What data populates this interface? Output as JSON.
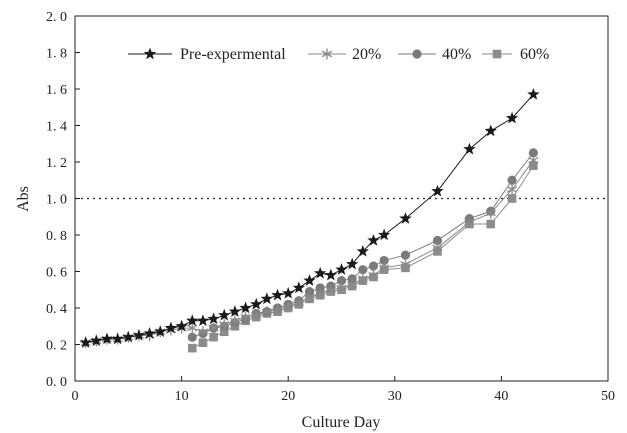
{
  "chart_data": {
    "type": "line",
    "title": "",
    "xlabel": "Culture Day",
    "ylabel": "Abs",
    "xlim": [
      0,
      50
    ],
    "ylim": [
      0,
      2.0
    ],
    "x_ticks": [
      "0",
      "10",
      "20",
      "30",
      "40",
      "50"
    ],
    "y_ticks": [
      "0. 0",
      "0. 2",
      "0. 4",
      "0. 6",
      "0. 8",
      "1. 0",
      "1. 2",
      "1. 4",
      "1. 6",
      "1. 8",
      "2. 0"
    ],
    "reference_line": {
      "y": 1.0,
      "style": "dotted"
    },
    "grid": false,
    "legend_position": "top",
    "series": [
      {
        "name": "Pre-expermental",
        "marker": "star",
        "color": "#1a1a1a",
        "x": [
          1,
          2,
          3,
          4,
          5,
          6,
          7,
          8,
          9,
          10,
          11,
          12,
          13,
          14,
          15,
          16,
          17,
          18,
          19,
          20,
          21,
          22,
          23,
          24,
          25,
          26,
          27,
          28,
          29,
          31,
          34,
          37,
          39,
          41,
          43
        ],
        "y": [
          0.21,
          0.22,
          0.23,
          0.23,
          0.24,
          0.25,
          0.26,
          0.27,
          0.29,
          0.3,
          0.33,
          0.33,
          0.34,
          0.36,
          0.38,
          0.4,
          0.42,
          0.45,
          0.47,
          0.48,
          0.51,
          0.55,
          0.59,
          0.58,
          0.61,
          0.64,
          0.71,
          0.77,
          0.8,
          0.89,
          1.04,
          1.27,
          1.37,
          1.44,
          1.57
        ]
      },
      {
        "name": "20%",
        "marker": "asterisk",
        "color": "#8a8a8a",
        "x": [
          1,
          2,
          3,
          4,
          5,
          6,
          7,
          8,
          9,
          10,
          11,
          12,
          13,
          14,
          15,
          16,
          17,
          18,
          19,
          20,
          21,
          22,
          23,
          24,
          25,
          26,
          27,
          28,
          29,
          31,
          34,
          37,
          39,
          41,
          43
        ],
        "y": [
          0.21,
          0.22,
          0.23,
          0.23,
          0.24,
          0.25,
          0.25,
          0.27,
          0.28,
          0.29,
          0.29,
          0.27,
          0.29,
          0.31,
          0.33,
          0.35,
          0.36,
          0.38,
          0.39,
          0.41,
          0.43,
          0.46,
          0.48,
          0.5,
          0.51,
          0.53,
          0.56,
          0.58,
          0.62,
          0.64,
          0.73,
          0.87,
          0.92,
          1.05,
          1.21
        ]
      },
      {
        "name": "40%",
        "marker": "circle",
        "color": "#7a7a7a",
        "x": [
          11,
          12,
          13,
          14,
          15,
          16,
          17,
          18,
          19,
          20,
          21,
          22,
          23,
          24,
          25,
          26,
          27,
          28,
          29,
          31,
          34,
          37,
          39,
          41,
          43
        ],
        "y": [
          0.24,
          0.26,
          0.29,
          0.3,
          0.32,
          0.34,
          0.37,
          0.38,
          0.4,
          0.42,
          0.44,
          0.49,
          0.51,
          0.52,
          0.55,
          0.56,
          0.61,
          0.63,
          0.66,
          0.69,
          0.77,
          0.89,
          0.93,
          1.1,
          1.25
        ]
      },
      {
        "name": "60%",
        "marker": "square",
        "color": "#8c8c8c",
        "x": [
          11,
          12,
          13,
          14,
          15,
          16,
          17,
          18,
          19,
          20,
          21,
          22,
          23,
          24,
          25,
          26,
          27,
          28,
          29,
          31,
          34,
          37,
          39,
          41,
          43
        ],
        "y": [
          0.18,
          0.21,
          0.24,
          0.27,
          0.3,
          0.33,
          0.35,
          0.37,
          0.38,
          0.4,
          0.42,
          0.45,
          0.47,
          0.49,
          0.5,
          0.52,
          0.55,
          0.57,
          0.61,
          0.62,
          0.71,
          0.86,
          0.86,
          1.0,
          1.18
        ]
      }
    ]
  }
}
